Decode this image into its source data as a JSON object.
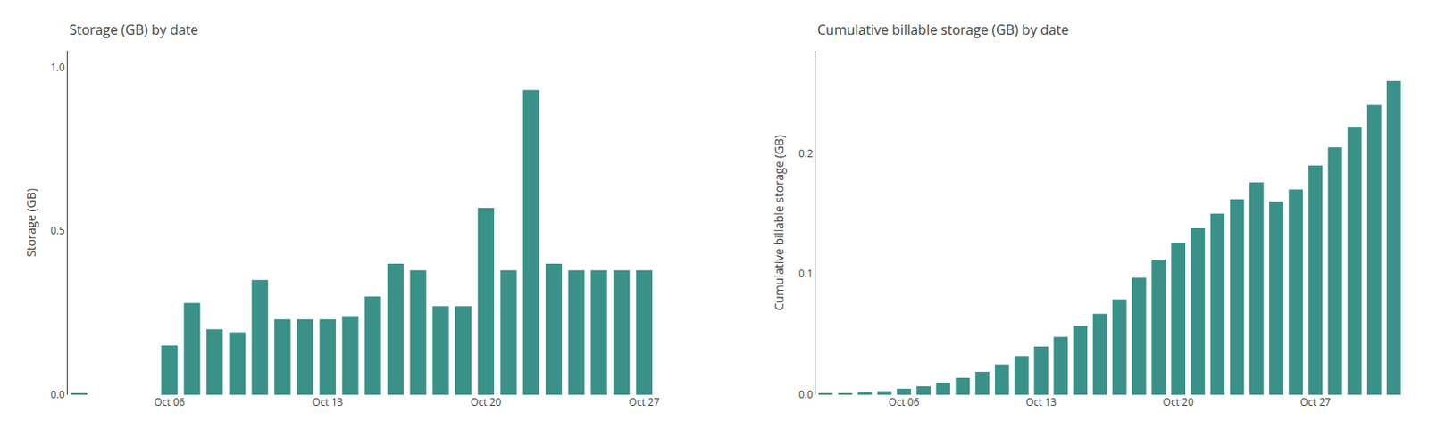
{
  "chart_data": [
    {
      "type": "bar",
      "title": "Storage (GB) by date",
      "ylabel": "Storage (GB)",
      "categories": [
        null,
        null,
        null,
        null,
        "Oct 06",
        null,
        null,
        null,
        null,
        null,
        null,
        "Oct 13",
        null,
        null,
        null,
        null,
        null,
        null,
        "Oct 20",
        null,
        null,
        null,
        null,
        null,
        null,
        "Oct 27"
      ],
      "values": [
        0.003,
        0.0,
        0.0,
        0.0,
        0.15,
        0.28,
        0.2,
        0.19,
        0.35,
        0.23,
        0.23,
        0.23,
        0.24,
        0.3,
        0.4,
        0.38,
        0.27,
        0.27,
        0.57,
        0.38,
        0.93,
        0.4,
        0.38,
        0.38,
        0.38,
        0.38
      ],
      "color": "#3a9188",
      "ylim": [
        0.0,
        1.05
      ],
      "yticks": [
        {
          "value": 0.0,
          "label": "0.0"
        },
        0.5,
        {
          "value": 1.0,
          "label": "1.0"
        }
      ],
      "grid": false
    },
    {
      "type": "bar",
      "title": "Cumulative billable storage (GB) by date",
      "ylabel": "Cumulative billable storage (GB)",
      "categories": [
        null,
        null,
        null,
        null,
        "Oct 06",
        null,
        null,
        null,
        null,
        null,
        null,
        "Oct 13",
        null,
        null,
        null,
        null,
        null,
        null,
        "Oct 20",
        null,
        null,
        null,
        null,
        null,
        null,
        "Oct 27",
        null,
        null,
        null,
        null
      ],
      "values": [
        0.001,
        0.001,
        0.002,
        0.003,
        0.005,
        0.007,
        0.01,
        0.014,
        0.019,
        0.025,
        0.032,
        0.04,
        0.048,
        0.057,
        0.067,
        0.079,
        0.097,
        0.112,
        0.126,
        0.138,
        0.15,
        0.162,
        0.176,
        0.16,
        0.17,
        0.19,
        0.205,
        0.222,
        0.24,
        0.26
      ],
      "color": "#3a9188",
      "ylim": [
        0.0,
        0.285
      ],
      "yticks": [
        {
          "value": 0.0,
          "label": "0.0"
        },
        0.1,
        0.2
      ],
      "grid": false
    }
  ]
}
